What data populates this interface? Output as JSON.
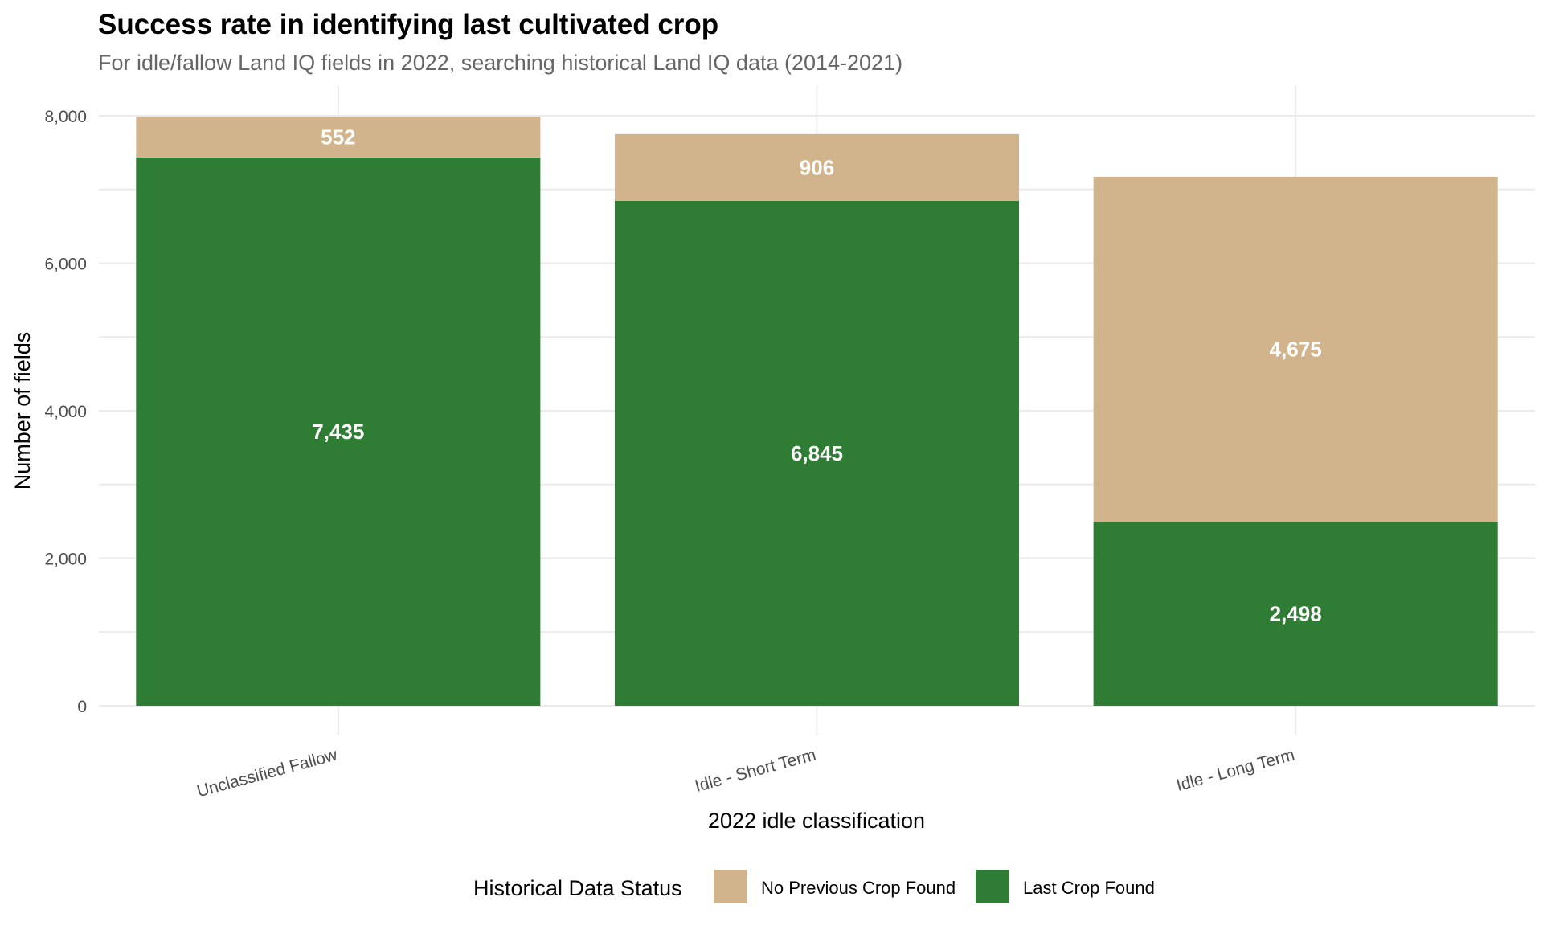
{
  "chart_data": {
    "type": "bar",
    "stacked": true,
    "title": "Success rate in identifying last cultivated crop",
    "subtitle": "For idle/fallow Land IQ fields in 2022, searching historical Land IQ data (2014-2021)",
    "xlabel": "2022 idle classification",
    "ylabel": "Number of fields",
    "ylim": [
      0,
      8000
    ],
    "yticks": [
      0,
      2000,
      4000,
      6000,
      8000
    ],
    "ytick_labels": [
      "0",
      "2,000",
      "4,000",
      "6,000",
      "8,000"
    ],
    "categories": [
      "Unclassified Fallow",
      "Idle - Short Term",
      "Idle - Long Term"
    ],
    "series": [
      {
        "name": "Last Crop Found",
        "color": "#2f7d34",
        "values": [
          7435,
          6845,
          2498
        ],
        "labels": [
          "7,435",
          "6,845",
          "2,498"
        ]
      },
      {
        "name": "No Previous Crop Found",
        "color": "#d2b48c",
        "values": [
          552,
          906,
          4675
        ],
        "labels": [
          "552",
          "906",
          "4,675"
        ]
      }
    ],
    "grid": true,
    "legend": {
      "title": "Historical Data Status",
      "position": "bottom",
      "entries": [
        {
          "label": "No Previous Crop Found",
          "color": "#d2b48c"
        },
        {
          "label": "Last Crop Found",
          "color": "#2f7d34"
        }
      ]
    }
  }
}
